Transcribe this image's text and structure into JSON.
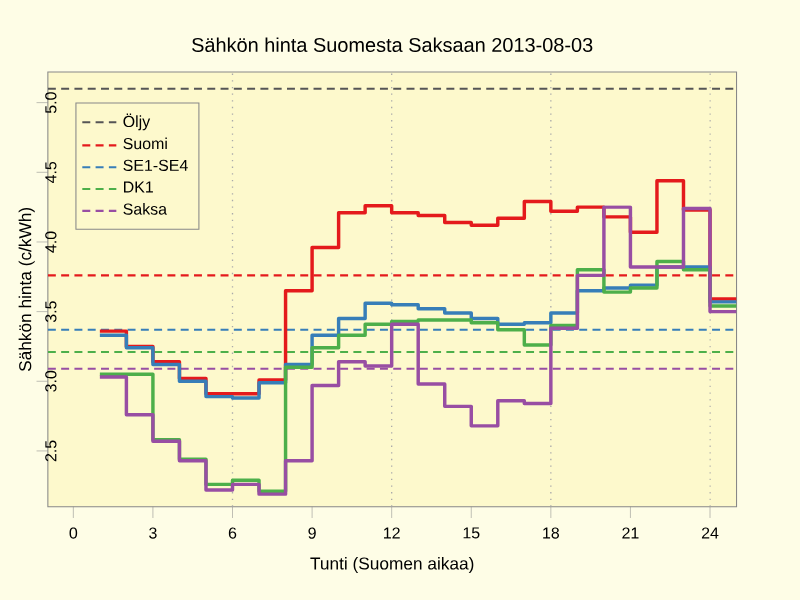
{
  "chart_data": {
    "type": "step",
    "title": "Sähkön hinta Suomesta Saksaan 2013-08-03",
    "xlabel": "Tunti (Suomen aikaa)",
    "ylabel": "Sähkön hinta (c/kWh)",
    "x": [
      1,
      2,
      3,
      4,
      5,
      6,
      7,
      8,
      9,
      10,
      11,
      12,
      13,
      14,
      15,
      16,
      17,
      18,
      19,
      20,
      21,
      22,
      23,
      24,
      25
    ],
    "series": [
      {
        "color": "#e41a1c",
        "values": [
          3.36,
          3.25,
          3.14,
          3.02,
          2.91,
          2.91,
          3.01,
          3.65,
          3.96,
          4.21,
          4.26,
          4.21,
          4.19,
          4.14,
          4.12,
          4.17,
          4.29,
          4.22,
          4.25,
          4.18,
          4.07,
          4.44,
          4.23,
          3.59,
          3.59
        ]
      },
      {
        "color": "#377eb8",
        "values": [
          3.33,
          3.24,
          3.12,
          3.0,
          2.89,
          2.88,
          2.99,
          3.12,
          3.33,
          3.45,
          3.56,
          3.55,
          3.52,
          3.49,
          3.45,
          3.41,
          3.42,
          3.49,
          3.65,
          3.67,
          3.69,
          3.82,
          3.82,
          3.57,
          3.57
        ]
      },
      {
        "color": "#4daf4a",
        "values": [
          3.05,
          3.05,
          2.58,
          2.44,
          2.26,
          2.29,
          2.21,
          3.1,
          3.24,
          3.33,
          3.41,
          3.43,
          3.44,
          3.44,
          3.42,
          3.37,
          3.26,
          3.4,
          3.8,
          3.64,
          3.67,
          3.86,
          3.8,
          3.54,
          3.54
        ]
      },
      {
        "color": "#984ea3",
        "values": [
          3.03,
          2.76,
          2.57,
          2.43,
          2.22,
          2.26,
          2.19,
          2.43,
          2.97,
          3.14,
          3.11,
          3.41,
          2.98,
          2.82,
          2.68,
          2.86,
          2.84,
          3.38,
          3.76,
          4.25,
          3.82,
          3.82,
          4.24,
          3.5,
          3.5
        ]
      }
    ],
    "xlim": [
      -0.96,
      25
    ],
    "ylim": [
      2.1,
      5.22
    ],
    "xticks": [
      0,
      3,
      6,
      9,
      12,
      15,
      18,
      21,
      24
    ],
    "yticks": [
      {
        "value": 2.5,
        "label": "2.5"
      },
      {
        "value": 3,
        "label": "3.0"
      },
      {
        "value": 3.5,
        "label": "3.5"
      },
      {
        "value": 4,
        "label": "4.0"
      },
      {
        "value": 4.5,
        "label": "4.5"
      },
      {
        "value": 5,
        "label": "5.0"
      }
    ],
    "ref_lines": [
      {
        "axis": "y",
        "value": 5.1,
        "label": "Öljy",
        "color": "#555555",
        "line_style": "dashed"
      },
      {
        "axis": "y",
        "value": 3.76,
        "label": "Suomi",
        "color": "#e41a1c",
        "line_style": "dashed"
      },
      {
        "axis": "y",
        "value": 3.37,
        "label": "SE1-SE4",
        "color": "#377eb8",
        "line_style": "dashed"
      },
      {
        "axis": "y",
        "value": 3.21,
        "label": "DK1",
        "color": "#4daf4a",
        "line_style": "dashed"
      },
      {
        "axis": "y",
        "value": 3.09,
        "label": "Saksa",
        "color": "#984ea3",
        "line_style": "dashed"
      },
      {
        "axis": "x",
        "value": 6,
        "color": "#aaaaaa",
        "line_style": "dotted"
      },
      {
        "axis": "x",
        "value": 12,
        "color": "#aaaaaa",
        "line_style": "dotted"
      },
      {
        "axis": "x",
        "value": 18,
        "color": "#aaaaaa",
        "line_style": "dotted"
      },
      {
        "axis": "x",
        "value": 24,
        "color": "#aaaaaa",
        "line_style": "dotted"
      }
    ],
    "legend": "top left"
  }
}
